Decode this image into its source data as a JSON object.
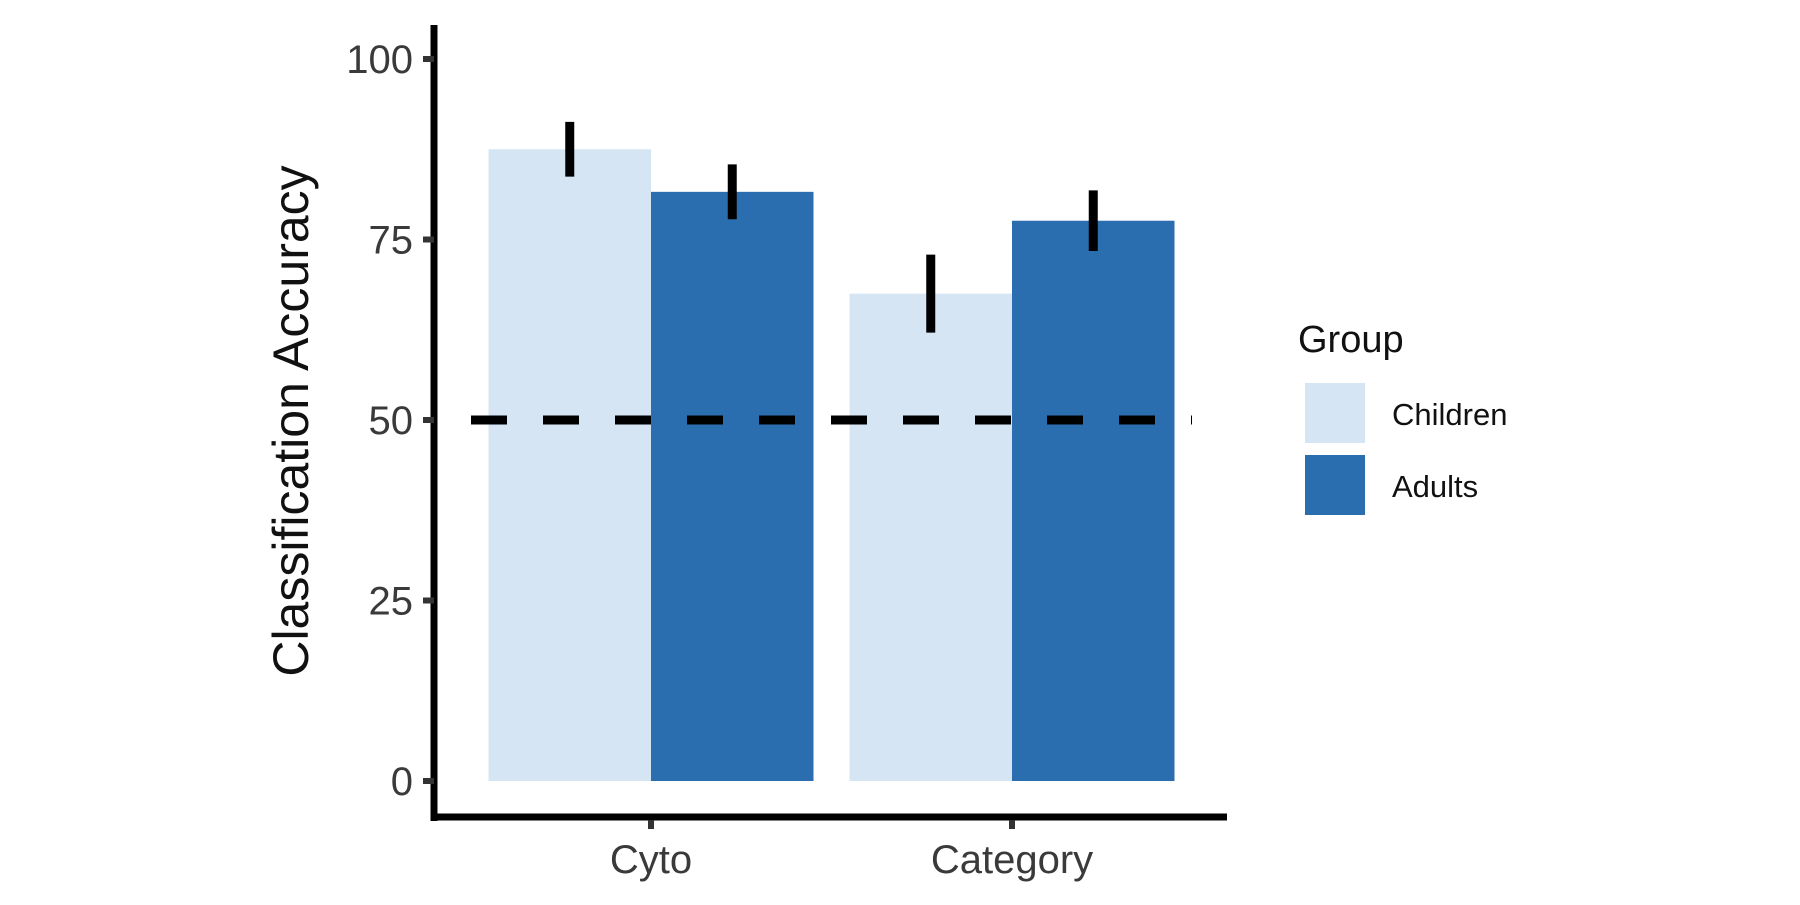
{
  "chart_data": {
    "type": "bar",
    "title": "",
    "xlabel": "",
    "ylabel": "Classification Accuracy",
    "categories": [
      "Cyto",
      "Category"
    ],
    "series": [
      {
        "name": "Children",
        "values": [
          87.5,
          67.5
        ],
        "errors": [
          3.8,
          5.4
        ],
        "color": "#d6e5f4"
      },
      {
        "name": "Adults",
        "values": [
          81.6,
          77.6
        ],
        "errors": [
          3.8,
          4.2
        ],
        "color": "#2b6eb0"
      }
    ],
    "ylim": [
      0,
      100
    ],
    "yticks": [
      0,
      25,
      50,
      75,
      100
    ],
    "reference_line": {
      "value": 50,
      "style": "dashed"
    },
    "grid": false,
    "legend": {
      "title": "Group",
      "position": "right"
    }
  }
}
